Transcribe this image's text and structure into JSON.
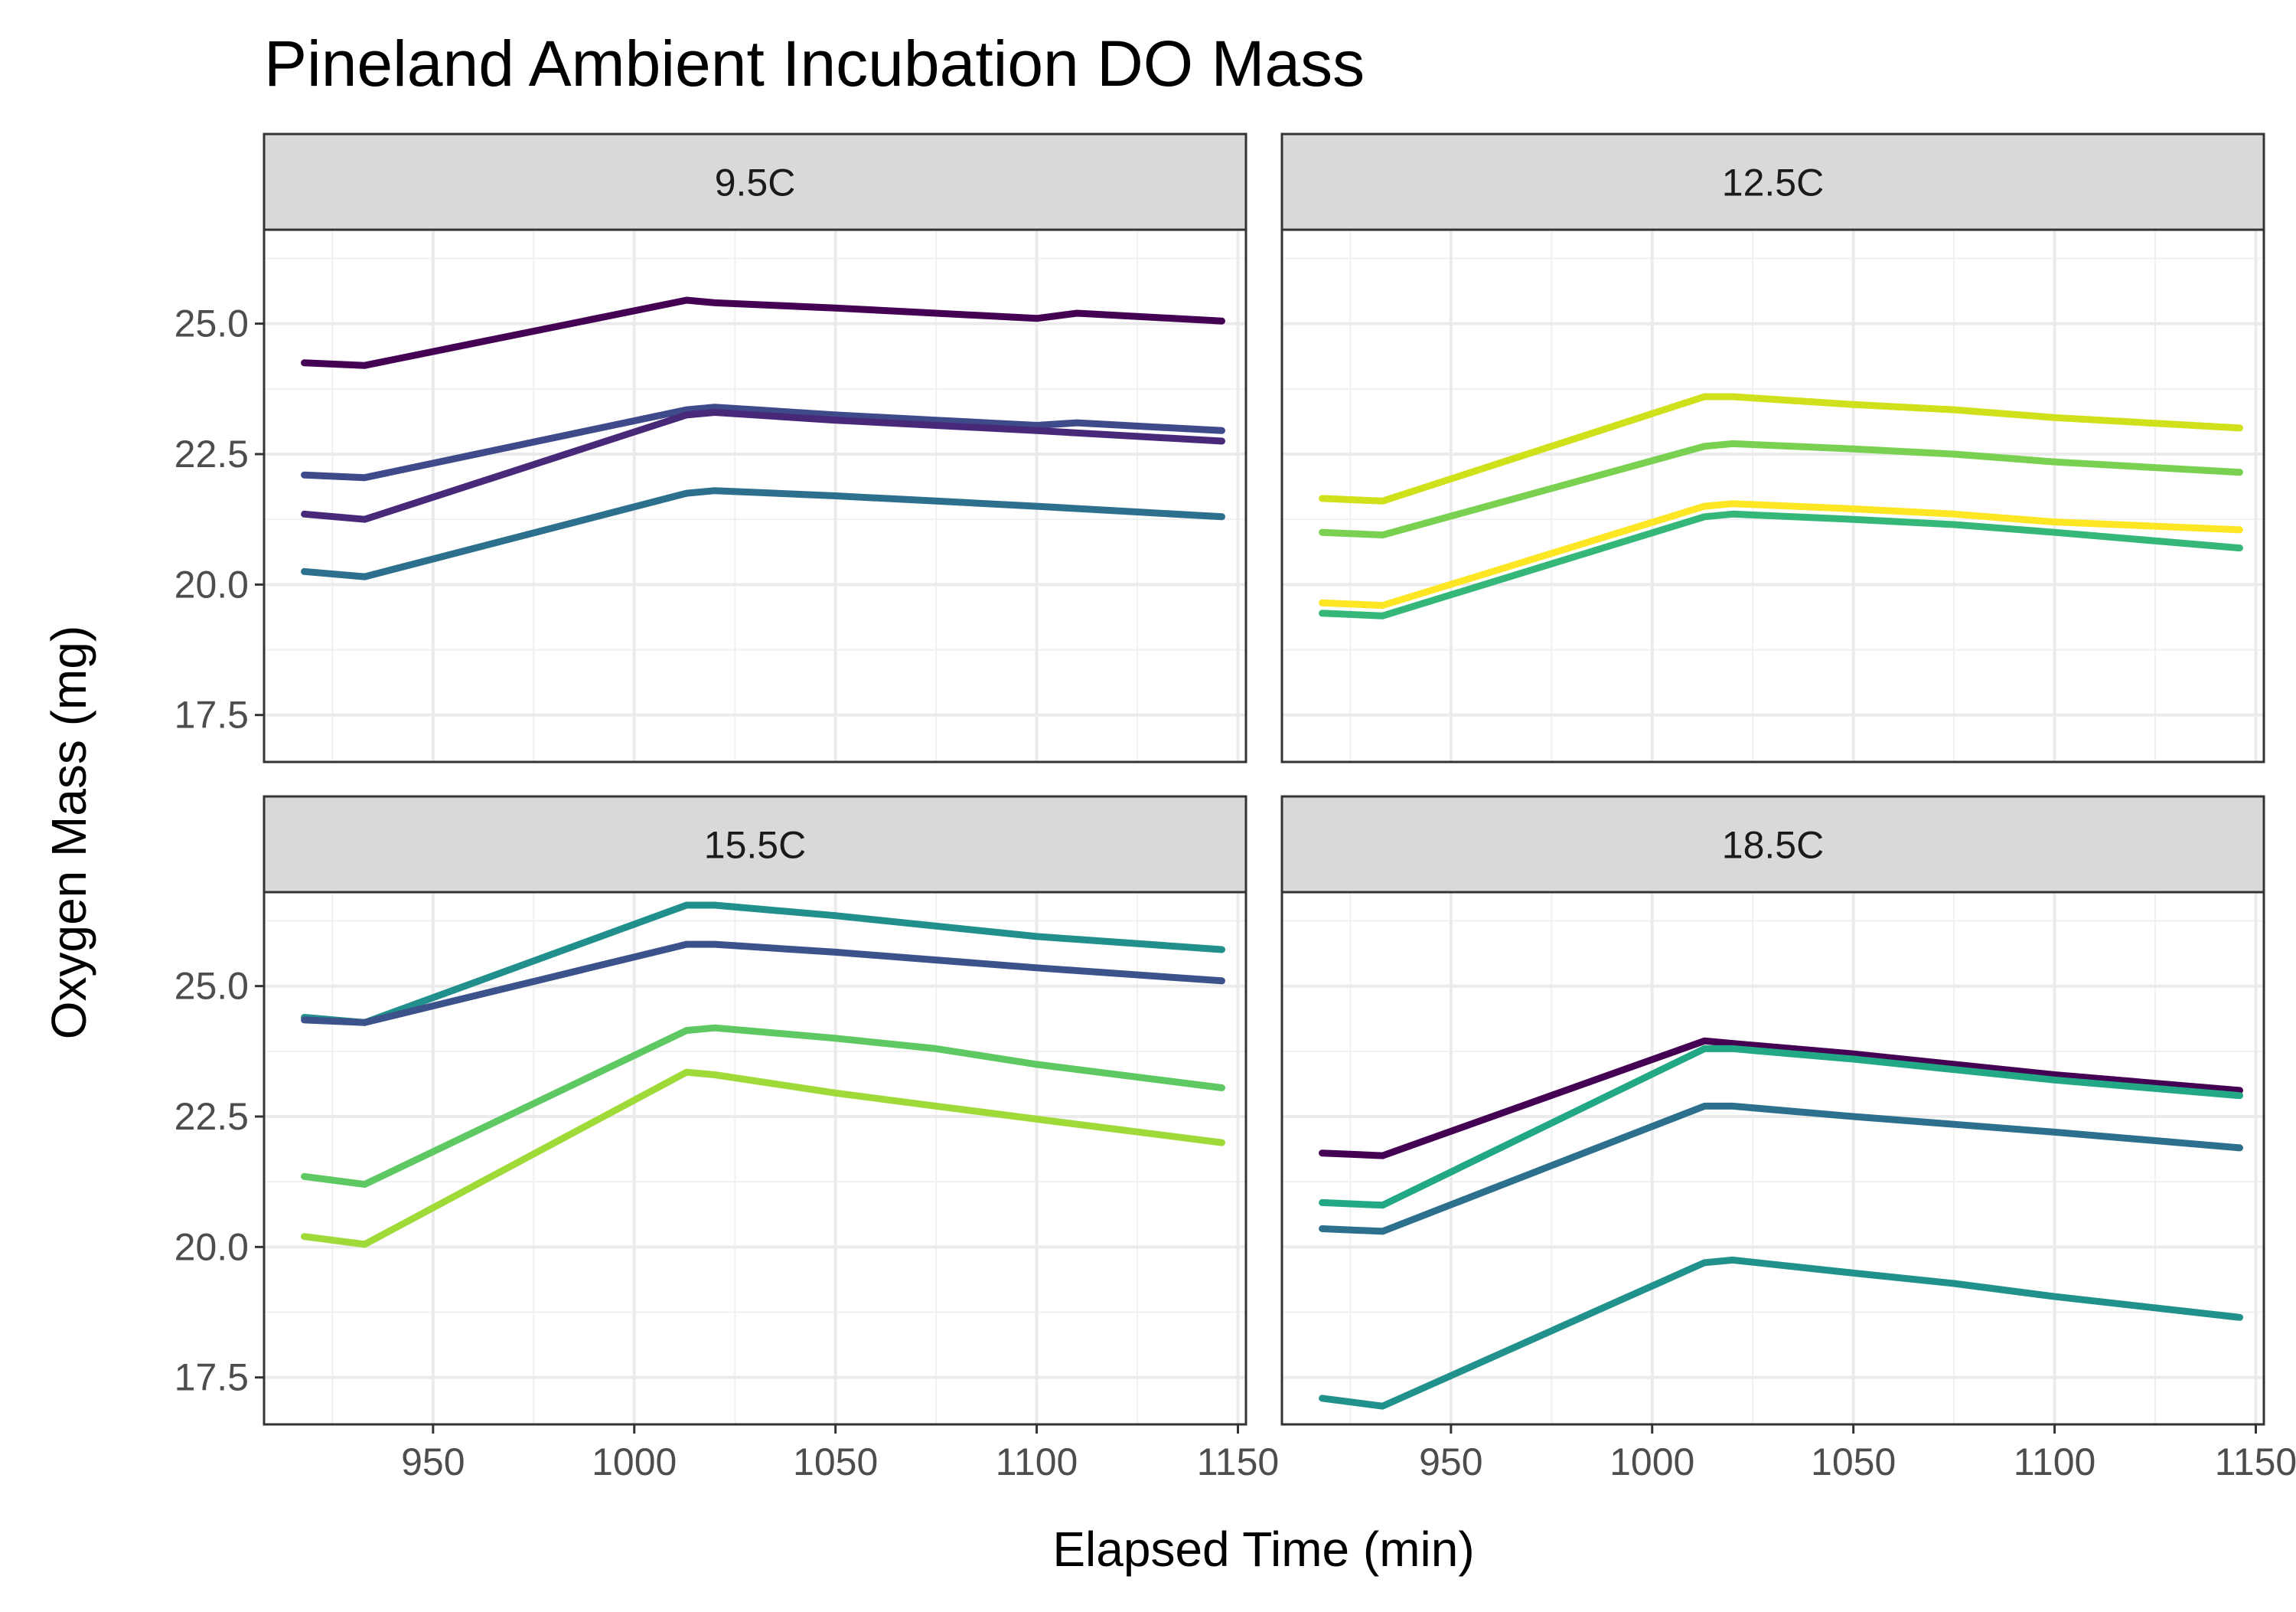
{
  "chart_data": {
    "type": "line",
    "title": "Pineland Ambient Incubation DO Mass",
    "xlabel": "Elapsed Time (min)",
    "ylabel": "Oxygen Mass (mg)",
    "xlim": [
      908,
      1152
    ],
    "ylim": [
      16.6,
      26.8
    ],
    "x_ticks": [
      950,
      1000,
      1050,
      1100,
      1150
    ],
    "x_tick_labels": [
      "950",
      "1000",
      "1050",
      "1100",
      "1150"
    ],
    "y_ticks": [
      17.5,
      20.0,
      22.5,
      25.0
    ],
    "y_tick_labels": [
      "17.5",
      "20.0",
      "22.5",
      "25.0"
    ],
    "grid": true,
    "legend": "none",
    "panels": [
      {
        "label": "9.5C",
        "series": [
          {
            "color": "#440154",
            "x": [
              918,
              933,
              1013,
              1020,
              1050,
              1075,
              1100,
              1110,
              1146
            ],
            "y": [
              24.25,
              24.2,
              25.45,
              25.4,
              25.3,
              25.2,
              25.1,
              25.2,
              25.05
            ]
          },
          {
            "color": "#3e4a89",
            "x": [
              918,
              933,
              1013,
              1020,
              1050,
              1075,
              1100,
              1110,
              1146
            ],
            "y": [
              22.1,
              22.05,
              23.35,
              23.4,
              23.25,
              23.15,
              23.05,
              23.1,
              22.95
            ]
          },
          {
            "color": "#482878",
            "x": [
              918,
              933,
              1013,
              1020,
              1050,
              1075,
              1100,
              1146
            ],
            "y": [
              21.35,
              21.25,
              23.25,
              23.3,
              23.15,
              23.05,
              22.95,
              22.75
            ]
          },
          {
            "color": "#2d708e",
            "x": [
              918,
              933,
              1013,
              1020,
              1050,
              1075,
              1100,
              1146
            ],
            "y": [
              20.25,
              20.15,
              21.75,
              21.8,
              21.7,
              21.6,
              21.5,
              21.3
            ]
          }
        ]
      },
      {
        "label": "12.5C",
        "series": [
          {
            "color": "#d0e11c",
            "x": [
              918,
              933,
              1013,
              1020,
              1050,
              1075,
              1100,
              1146
            ],
            "y": [
              21.65,
              21.6,
              23.6,
              23.6,
              23.45,
              23.35,
              23.2,
              23.0
            ]
          },
          {
            "color": "#7ad151",
            "x": [
              918,
              933,
              1013,
              1020,
              1050,
              1075,
              1100,
              1146
            ],
            "y": [
              21.0,
              20.95,
              22.65,
              22.7,
              22.6,
              22.5,
              22.35,
              22.15
            ]
          },
          {
            "color": "#fde725",
            "x": [
              918,
              933,
              1013,
              1020,
              1050,
              1075,
              1100,
              1146
            ],
            "y": [
              19.65,
              19.6,
              21.5,
              21.55,
              21.45,
              21.35,
              21.2,
              21.05
            ]
          },
          {
            "color": "#35b779",
            "x": [
              918,
              933,
              1013,
              1020,
              1050,
              1075,
              1100,
              1146
            ],
            "y": [
              19.45,
              19.4,
              21.3,
              21.35,
              21.25,
              21.15,
              21.0,
              20.7
            ]
          }
        ]
      },
      {
        "label": "15.5C",
        "series": [
          {
            "color": "#21908c",
            "x": [
              918,
              933,
              1013,
              1020,
              1050,
              1075,
              1100,
              1146
            ],
            "y": [
              24.4,
              24.3,
              26.55,
              26.55,
              26.35,
              26.15,
              25.95,
              25.7
            ]
          },
          {
            "color": "#3b528b",
            "x": [
              918,
              933,
              1013,
              1020,
              1050,
              1075,
              1100,
              1146
            ],
            "y": [
              24.35,
              24.3,
              25.8,
              25.8,
              25.65,
              25.5,
              25.35,
              25.1
            ]
          },
          {
            "color": "#5ec962",
            "x": [
              918,
              933,
              1013,
              1020,
              1050,
              1075,
              1100,
              1146
            ],
            "y": [
              21.35,
              21.2,
              24.15,
              24.2,
              24.0,
              23.8,
              23.5,
              23.05
            ]
          },
          {
            "color": "#a0da39",
            "x": [
              918,
              933,
              1013,
              1020,
              1050,
              1075,
              1100,
              1146
            ],
            "y": [
              20.2,
              20.05,
              23.35,
              23.3,
              22.95,
              22.7,
              22.45,
              22.0
            ]
          }
        ]
      },
      {
        "label": "18.5C",
        "series": [
          {
            "color": "#440154",
            "x": [
              918,
              933,
              1013,
              1020,
              1050,
              1075,
              1100,
              1146
            ],
            "y": [
              21.8,
              21.75,
              23.95,
              23.9,
              23.7,
              23.5,
              23.3,
              23.0
            ]
          },
          {
            "color": "#22a884",
            "x": [
              918,
              933,
              1013,
              1020,
              1050,
              1075,
              1100,
              1146
            ],
            "y": [
              20.85,
              20.8,
              23.8,
              23.8,
              23.6,
              23.4,
              23.2,
              22.9
            ]
          },
          {
            "color": "#2d708e",
            "x": [
              918,
              933,
              1013,
              1020,
              1050,
              1075,
              1100,
              1146
            ],
            "y": [
              20.35,
              20.3,
              22.7,
              22.7,
              22.5,
              22.35,
              22.2,
              21.9
            ]
          },
          {
            "color": "#21918c",
            "x": [
              918,
              933,
              1013,
              1020,
              1050,
              1075,
              1100,
              1146
            ],
            "y": [
              17.1,
              16.95,
              19.7,
              19.75,
              19.5,
              19.3,
              19.05,
              18.65
            ]
          }
        ]
      }
    ]
  }
}
